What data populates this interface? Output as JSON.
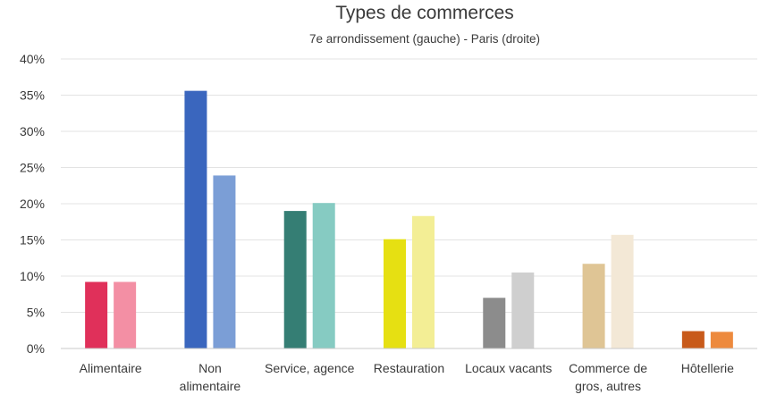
{
  "chart_data": {
    "type": "bar",
    "title": "Types de commerces",
    "subtitle": "7e arrondissement (gauche)  -  Paris (droite)",
    "xlabel": "",
    "ylabel": "",
    "ylim": [
      0,
      0.4
    ],
    "y_ticks": [
      0,
      0.05,
      0.1,
      0.15,
      0.2,
      0.25,
      0.3,
      0.35,
      0.4
    ],
    "y_tick_labels": [
      "0%",
      "5%",
      "10%",
      "15%",
      "20%",
      "25%",
      "30%",
      "35%",
      "40%"
    ],
    "grid": true,
    "legend": "none",
    "categories": [
      [
        "Alimentaire"
      ],
      [
        "Non",
        "alimentaire"
      ],
      [
        "Service, agence"
      ],
      [
        "Restauration"
      ],
      [
        "Locaux vacants"
      ],
      [
        "Commerce de",
        "gros, autres"
      ],
      [
        "Hôtellerie"
      ]
    ],
    "values_7e": [
      0.092,
      0.356,
      0.19,
      0.151,
      0.07,
      0.117,
      0.024
    ],
    "values_paris": [
      0.092,
      0.239,
      0.201,
      0.183,
      0.105,
      0.157,
      0.023
    ],
    "colors_7e": [
      "#e0305a",
      "#3a66be",
      "#357e74",
      "#e6e012",
      "#8c8c8c",
      "#dfc595",
      "#c85a1a"
    ],
    "colors_paris": [
      "#f38fa4",
      "#7b9ed6",
      "#86cbc2",
      "#f3ee95",
      "#cfcfcf",
      "#f3e8d6",
      "#ed8a3e"
    ]
  }
}
